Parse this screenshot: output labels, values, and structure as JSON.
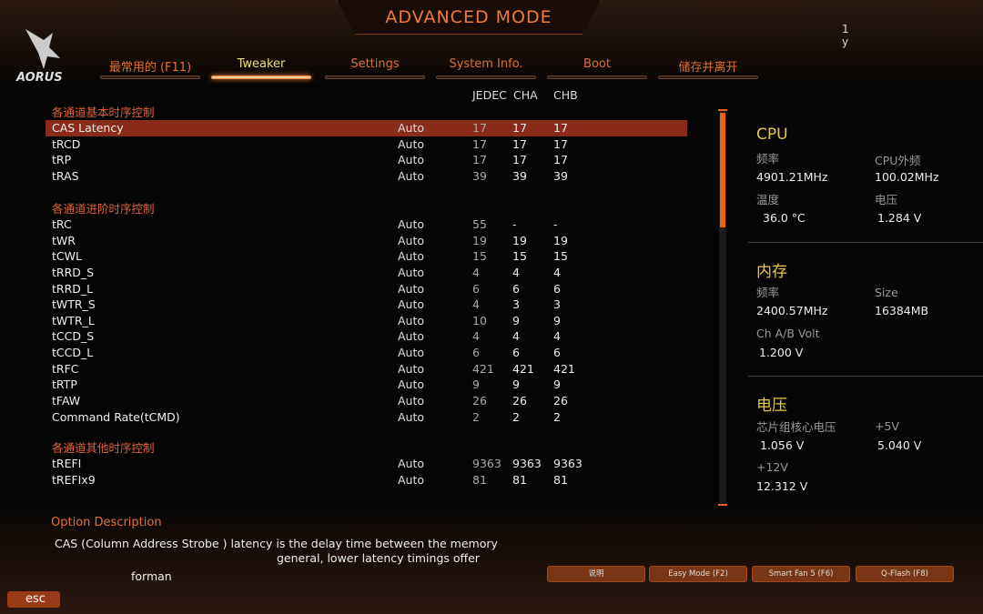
{
  "header": {
    "title": "ADVANCED MODE",
    "logo": "AORUS",
    "corner_text": [
      "1",
      "y"
    ]
  },
  "tabs": [
    {
      "label": "最常用的 (F11)"
    },
    {
      "label": "Tweaker",
      "active": true
    },
    {
      "label": "Settings"
    },
    {
      "label": "System Info."
    },
    {
      "label": "Boot"
    },
    {
      "label": "储存并离开"
    }
  ],
  "columns": {
    "jedec": "JEDEC",
    "cha": "CHA",
    "chb": "CHB"
  },
  "sections": [
    {
      "title": "各通道基本时序控制",
      "rows": [
        [
          "CAS Latency",
          "Auto",
          "17",
          "17",
          "17"
        ],
        [
          "tRCD",
          "Auto",
          "17",
          "17",
          "17"
        ],
        [
          "tRP",
          "Auto",
          "17",
          "17",
          "17"
        ],
        [
          "tRAS",
          "Auto",
          "39",
          "39",
          "39"
        ]
      ]
    },
    {
      "title": "各通道进阶时序控制",
      "rows": [
        [
          "tRC",
          "Auto",
          "55",
          "-",
          "-"
        ],
        [
          "tWR",
          "Auto",
          "19",
          "19",
          "19"
        ],
        [
          "tCWL",
          "Auto",
          "15",
          "15",
          "15"
        ],
        [
          "tRRD_S",
          "Auto",
          "4",
          "4",
          "4"
        ],
        [
          "tRRD_L",
          "Auto",
          "6",
          "6",
          "6"
        ],
        [
          "tWTR_S",
          "Auto",
          "4",
          "3",
          "3"
        ],
        [
          "tWTR_L",
          "Auto",
          "10",
          "9",
          "9"
        ],
        [
          "tCCD_S",
          "Auto",
          "4",
          "4",
          "4"
        ],
        [
          "tCCD_L",
          "Auto",
          "6",
          "6",
          "6"
        ],
        [
          "tRFC",
          "Auto",
          "421",
          "421",
          "421"
        ],
        [
          "tRTP",
          "Auto",
          "9",
          "9",
          "9"
        ],
        [
          "tFAW",
          "Auto",
          "26",
          "26",
          "26"
        ],
        [
          "Command Rate(tCMD)",
          "Auto",
          "2",
          "2",
          "2"
        ]
      ]
    },
    {
      "title": "各通道其他时序控制",
      "rows": [
        [
          "tREFI",
          "Auto",
          "9363",
          "9363",
          "9363"
        ],
        [
          "tREFIx9",
          "Auto",
          "81",
          "81",
          "81"
        ]
      ]
    }
  ],
  "selected_row": "CAS Latency",
  "cpu": {
    "title": "CPU",
    "freq_label": "频率",
    "freq": "4901.21MHz",
    "bclk_label": "CPU外频",
    "bclk": "100.02MHz",
    "temp_label": "温度",
    "temp": "36.0 °C",
    "volt_label": "电压",
    "volt": "1.284 V"
  },
  "memory": {
    "title": "内存",
    "freq_label": "频率",
    "freq": "2400.57MHz",
    "size_label": "Size",
    "size": "16384MB",
    "volt_label": "Ch A/B Volt",
    "volt": "1.200 V"
  },
  "voltage": {
    "title": "电压",
    "chipset_label": "芯片组核心电压",
    "chipset": "1.056 V",
    "v5_label": "+5V",
    "v5": "5.040 V",
    "v12_label": "+12V",
    "v12": "12.312 V"
  },
  "description": {
    "title": "Option Description",
    "line1": "CAS (Column Address Strobe )  latency is the delay time between the memory",
    "line2": "general, lower latency timings offer",
    "line3": "forman"
  },
  "footer": {
    "buttons": [
      "说明",
      "Easy Mode (F2)",
      "Smart Fan 5 (F6)",
      "Q-Flash (F8)"
    ],
    "esc": "esc"
  },
  "colors": {
    "accent": "#e8601a",
    "selected": "#8a2a1a",
    "heading": "#e8c840"
  }
}
